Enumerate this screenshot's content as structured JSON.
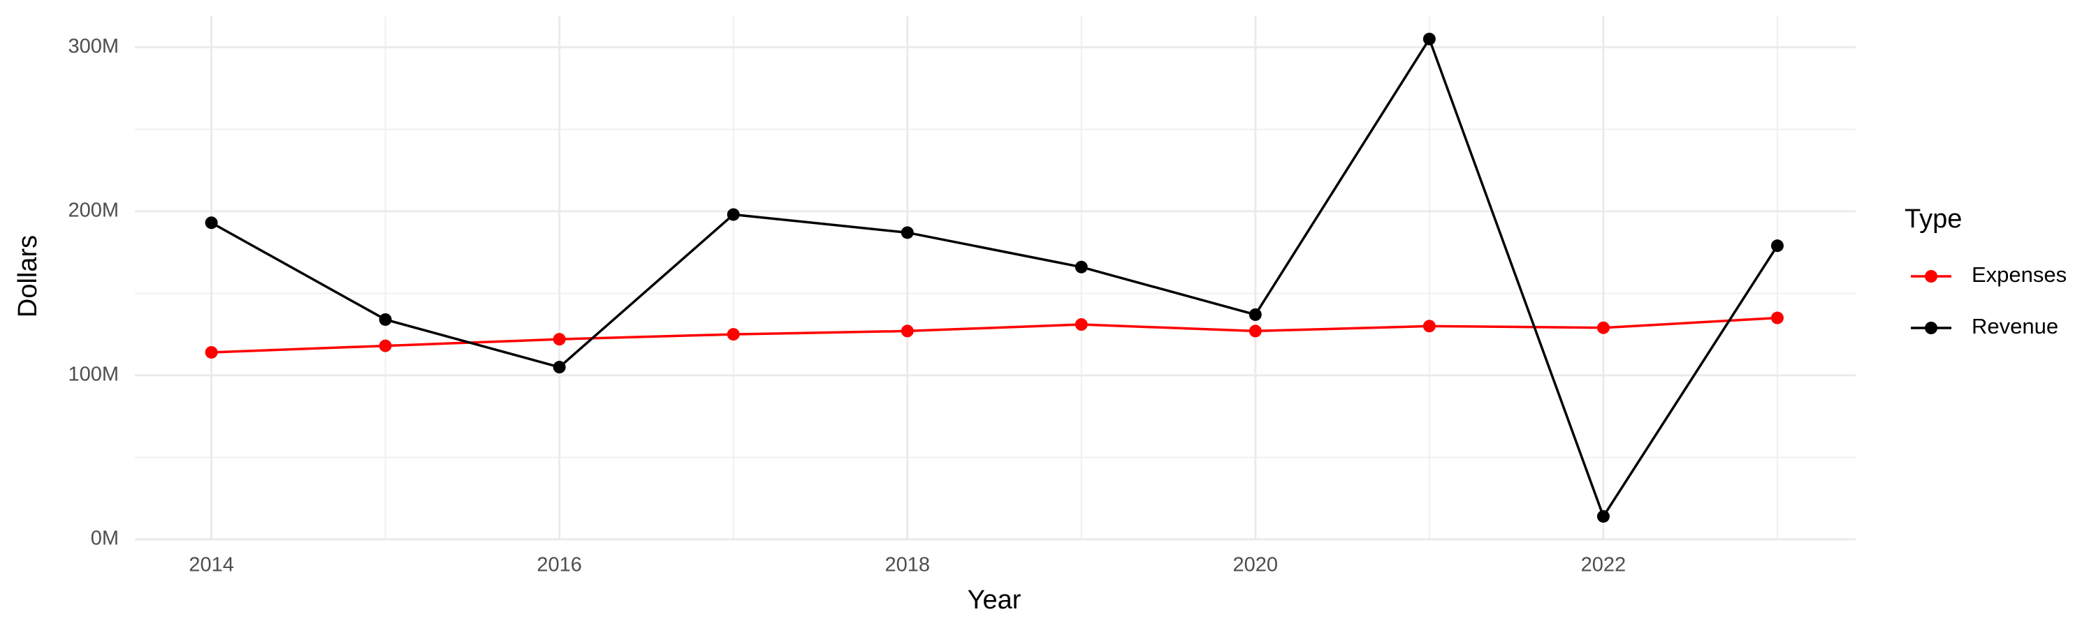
{
  "chart_data": {
    "type": "line",
    "x_label": "Year",
    "y_label": "Dollars",
    "x": [
      2014,
      2015,
      2016,
      2017,
      2018,
      2019,
      2020,
      2021,
      2022,
      2023
    ],
    "series": [
      {
        "name": "Expenses",
        "color": "#ff0000",
        "values": [
          114000000,
          118000000,
          122000000,
          125000000,
          127000000,
          131000000,
          127000000,
          130000000,
          129000000,
          135000000
        ]
      },
      {
        "name": "Revenue",
        "color": "#000000",
        "values": [
          193000000,
          134000000,
          105000000,
          198000000,
          187000000,
          166000000,
          137000000,
          305000000,
          14000000,
          179000000
        ]
      }
    ],
    "legend_title": "Type",
    "legend_position": "right",
    "xlim": [
      2013.56,
      2023.45
    ],
    "xticks": [
      2014,
      2016,
      2018,
      2020,
      2022
    ],
    "xminor": [
      2015,
      2017,
      2019,
      2021,
      2023
    ],
    "ylim": [
      0,
      319000000
    ],
    "yticks": [
      {
        "value": 0,
        "label": "0M"
      },
      {
        "value": 100000000,
        "label": "100M"
      },
      {
        "value": 200000000,
        "label": "200M"
      },
      {
        "value": 300000000,
        "label": "300M"
      }
    ],
    "yminor": [
      50000000,
      150000000,
      250000000
    ],
    "grid": true
  }
}
